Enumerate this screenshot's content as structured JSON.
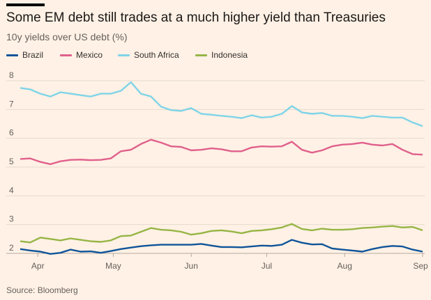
{
  "header": {
    "title": "Some EM debt still trades at a much higher yield than Treasuries",
    "subtitle": "10y yields over US debt (%)"
  },
  "source": "Source: Bloomberg",
  "chart_data": {
    "type": "line",
    "title": "Some EM debt still trades at a much higher yield than Treasuries",
    "subtitle": "10y yields over US debt (%)",
    "xlabel": "",
    "ylabel": "",
    "x_ticks": [
      "Apr",
      "May",
      "Jun",
      "Jul",
      "Aug",
      "Sep"
    ],
    "x": [
      "Mar 25",
      "Mar 29",
      "Apr 2",
      "Apr 6",
      "Apr 10",
      "Apr 14",
      "Apr 18",
      "Apr 22",
      "Apr 26",
      "Apr 30",
      "May 4",
      "May 8",
      "May 12",
      "May 16",
      "May 20",
      "May 24",
      "May 28",
      "Jun 1",
      "Jun 5",
      "Jun 9",
      "Jun 13",
      "Jun 17",
      "Jun 21",
      "Jun 25",
      "Jun 29",
      "Jul 3",
      "Jul 7",
      "Jul 11",
      "Jul 15",
      "Jul 19",
      "Jul 23",
      "Jul 27",
      "Jul 31",
      "Aug 4",
      "Aug 8",
      "Aug 12",
      "Aug 16",
      "Aug 20",
      "Aug 24",
      "Aug 28",
      "Sep 1"
    ],
    "ylim": [
      1.85,
      8.2
    ],
    "y_ticks": [
      2,
      3,
      4,
      5,
      6,
      7,
      8
    ],
    "grid": true,
    "legend_position": "top-left",
    "series": [
      {
        "name": "Brazil",
        "color": "#0f5499",
        "values": [
          2.15,
          2.1,
          2.06,
          1.98,
          2.02,
          2.13,
          2.06,
          2.07,
          2.02,
          2.08,
          2.15,
          2.2,
          2.25,
          2.28,
          2.3,
          2.3,
          2.3,
          2.3,
          2.33,
          2.27,
          2.22,
          2.22,
          2.21,
          2.24,
          2.27,
          2.26,
          2.3,
          2.47,
          2.37,
          2.31,
          2.32,
          2.17,
          2.13,
          2.1,
          2.06,
          2.15,
          2.22,
          2.26,
          2.24,
          2.13,
          2.06
        ]
      },
      {
        "name": "Mexico",
        "color": "#e0608c",
        "values": [
          5.28,
          5.3,
          5.18,
          5.1,
          5.2,
          5.25,
          5.26,
          5.24,
          5.25,
          5.3,
          5.55,
          5.6,
          5.8,
          5.95,
          5.85,
          5.72,
          5.7,
          5.58,
          5.6,
          5.65,
          5.62,
          5.55,
          5.55,
          5.68,
          5.72,
          5.71,
          5.72,
          5.88,
          5.6,
          5.5,
          5.58,
          5.72,
          5.78,
          5.8,
          5.85,
          5.78,
          5.75,
          5.8,
          5.6,
          5.45,
          5.43
        ]
      },
      {
        "name": "South Africa",
        "color": "#7fd4e8",
        "values": [
          7.75,
          7.7,
          7.55,
          7.45,
          7.6,
          7.55,
          7.5,
          7.45,
          7.55,
          7.55,
          7.65,
          7.95,
          7.55,
          7.45,
          7.1,
          6.98,
          6.95,
          7.05,
          6.85,
          6.82,
          6.78,
          6.75,
          6.7,
          6.8,
          6.72,
          6.75,
          6.85,
          7.12,
          6.9,
          6.85,
          6.88,
          6.78,
          6.78,
          6.75,
          6.7,
          6.78,
          6.75,
          6.72,
          6.72,
          6.55,
          6.42
        ]
      },
      {
        "name": "Indonesia",
        "color": "#96b545",
        "values": [
          2.42,
          2.38,
          2.55,
          2.5,
          2.45,
          2.52,
          2.47,
          2.42,
          2.4,
          2.45,
          2.6,
          2.62,
          2.75,
          2.88,
          2.82,
          2.8,
          2.75,
          2.65,
          2.7,
          2.78,
          2.8,
          2.76,
          2.7,
          2.78,
          2.8,
          2.84,
          2.9,
          3.02,
          2.85,
          2.8,
          2.86,
          2.82,
          2.82,
          2.84,
          2.88,
          2.9,
          2.93,
          2.95,
          2.9,
          2.92,
          2.8
        ]
      }
    ]
  }
}
